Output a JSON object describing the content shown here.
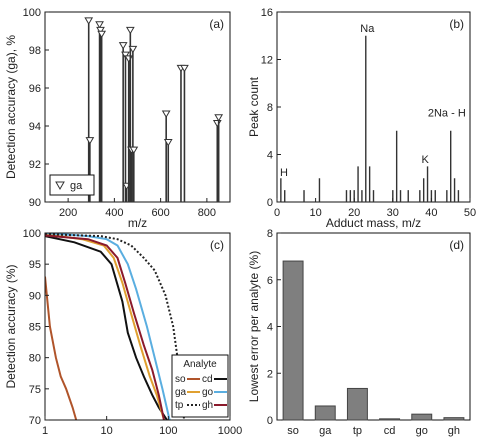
{
  "palette": {
    "axis": "#222222",
    "stem": "#333333",
    "bar_fill": "#7f7f7f",
    "bar_stroke": "#444444",
    "frame": "#111111"
  },
  "chart_data": [
    {
      "id": "a",
      "type": "scatter",
      "panel_label": "(a)",
      "xlabel": "m/z",
      "ylabel": "Detection accuracy (ga), %",
      "xlim": [
        100,
        900
      ],
      "ylim": [
        90,
        100
      ],
      "xticks": [
        200,
        400,
        600,
        800
      ],
      "yticks": [
        90,
        92,
        94,
        96,
        98,
        100
      ],
      "marker": "triangle-down",
      "legend": {
        "entries": [
          "ga"
        ],
        "position": "bottom-left"
      },
      "points": [
        {
          "x": 289,
          "y": 99.4
        },
        {
          "x": 294,
          "y": 93.1
        },
        {
          "x": 336,
          "y": 99.2
        },
        {
          "x": 340,
          "y": 98.9
        },
        {
          "x": 345,
          "y": 98.7
        },
        {
          "x": 438,
          "y": 98.1
        },
        {
          "x": 448,
          "y": 97.6
        },
        {
          "x": 453,
          "y": 90.7
        },
        {
          "x": 462,
          "y": 97.4
        },
        {
          "x": 469,
          "y": 98.9
        },
        {
          "x": 474,
          "y": 92.6
        },
        {
          "x": 480,
          "y": 97.9
        },
        {
          "x": 484,
          "y": 92.6
        },
        {
          "x": 624,
          "y": 94.5
        },
        {
          "x": 633,
          "y": 93.0
        },
        {
          "x": 688,
          "y": 96.9
        },
        {
          "x": 703,
          "y": 96.9
        },
        {
          "x": 845,
          "y": 94.0
        },
        {
          "x": 851,
          "y": 94.3
        }
      ]
    },
    {
      "id": "b",
      "type": "bar",
      "panel_label": "(b)",
      "xlabel": "Adduct mass, m/z",
      "ylabel": "Peak count",
      "xlim": [
        0,
        50
      ],
      "ylim": [
        0,
        16
      ],
      "xticks": [
        0,
        10,
        20,
        30,
        40,
        50
      ],
      "yticks": [
        0,
        4,
        8,
        12,
        16
      ],
      "annotations": [
        {
          "text": "H",
          "x": 1.8,
          "y": 2.2
        },
        {
          "text": "Na",
          "x": 23.4,
          "y": 14.3
        },
        {
          "text": "K",
          "x": 38.4,
          "y": 3.3
        },
        {
          "text": "2Na - H",
          "x": 44,
          "y": 7.2
        }
      ],
      "bars": [
        {
          "x": 1,
          "y": 2
        },
        {
          "x": 2,
          "y": 1
        },
        {
          "x": 7,
          "y": 1
        },
        {
          "x": 11,
          "y": 2
        },
        {
          "x": 18,
          "y": 1
        },
        {
          "x": 19,
          "y": 1
        },
        {
          "x": 20,
          "y": 1
        },
        {
          "x": 21,
          "y": 3
        },
        {
          "x": 22,
          "y": 1
        },
        {
          "x": 23,
          "y": 14
        },
        {
          "x": 24,
          "y": 3
        },
        {
          "x": 25,
          "y": 1
        },
        {
          "x": 30,
          "y": 1
        },
        {
          "x": 31,
          "y": 6
        },
        {
          "x": 32,
          "y": 1
        },
        {
          "x": 34,
          "y": 1
        },
        {
          "x": 37,
          "y": 1
        },
        {
          "x": 38,
          "y": 2
        },
        {
          "x": 39,
          "y": 3
        },
        {
          "x": 40,
          "y": 1
        },
        {
          "x": 41,
          "y": 1
        },
        {
          "x": 44,
          "y": 1
        },
        {
          "x": 45,
          "y": 6
        },
        {
          "x": 46,
          "y": 2
        },
        {
          "x": 47,
          "y": 1
        }
      ]
    },
    {
      "id": "c",
      "type": "line",
      "panel_label": "(c)",
      "xlabel": "",
      "ylabel": "Detection accuracy (%)",
      "xscale": "log",
      "xlim": [
        1,
        1000
      ],
      "ylim": [
        70,
        100
      ],
      "xticks": [
        1,
        10,
        100,
        1000
      ],
      "xtick_labels": [
        "1",
        "10",
        "100",
        "1000"
      ],
      "yticks": [
        70,
        75,
        80,
        85,
        90,
        95,
        100
      ],
      "legend": {
        "title": "Analyte",
        "position": "bottom-right",
        "columns": 2
      },
      "series": [
        {
          "name": "so",
          "color": "#b0542a",
          "dash": "solid",
          "x": [
            1,
            1.2,
            1.5,
            1.8,
            2.2,
            2.8,
            3.2
          ],
          "y": [
            93,
            85,
            80,
            77,
            75,
            72,
            70
          ]
        },
        {
          "name": "cd",
          "color": "#111111",
          "dash": "solid",
          "x": [
            1,
            3,
            8,
            12,
            18,
            22,
            30,
            40,
            55,
            70,
            95
          ],
          "y": [
            99.5,
            98.5,
            97,
            95,
            89,
            84,
            80,
            77,
            74,
            72,
            70
          ]
        },
        {
          "name": "ga",
          "color": "#e0a030",
          "dash": "solid",
          "x": [
            1,
            4,
            9,
            13,
            18,
            25,
            35,
            50,
            65,
            85
          ],
          "y": [
            99.8,
            99,
            98,
            96,
            92,
            87,
            82,
            77,
            74,
            70
          ]
        },
        {
          "name": "go",
          "color": "#5aaee0",
          "dash": "solid",
          "x": [
            1,
            5,
            10,
            15,
            22,
            30,
            45,
            60,
            80,
            105
          ],
          "y": [
            100,
            99.5,
            99,
            98,
            95,
            91,
            85,
            80,
            75,
            70
          ]
        },
        {
          "name": "tp",
          "color": "#222222",
          "dash": "dotted",
          "x": [
            1,
            8,
            15,
            25,
            40,
            60,
            90,
            120,
            150,
            180
          ],
          "y": [
            99.8,
            99.5,
            99,
            98,
            96,
            94,
            90,
            85,
            78,
            70
          ]
        },
        {
          "name": "gh",
          "color": "#8b1a2b",
          "dash": "solid",
          "x": [
            1,
            5,
            10,
            15,
            20,
            28,
            40,
            55,
            70,
            85
          ],
          "y": [
            99.6,
            99,
            98,
            96,
            92,
            87,
            82,
            78,
            74,
            70
          ]
        }
      ]
    },
    {
      "id": "d",
      "type": "bar",
      "panel_label": "(d)",
      "xlabel": "",
      "ylabel": "Lowest error per analyte (%)",
      "ylim": [
        0,
        8
      ],
      "yticks": [
        0,
        2,
        4,
        6,
        8
      ],
      "categories": [
        "so",
        "ga",
        "tp",
        "cd",
        "go",
        "gh"
      ],
      "values": [
        6.8,
        0.6,
        1.35,
        0.05,
        0.25,
        0.1
      ]
    }
  ]
}
